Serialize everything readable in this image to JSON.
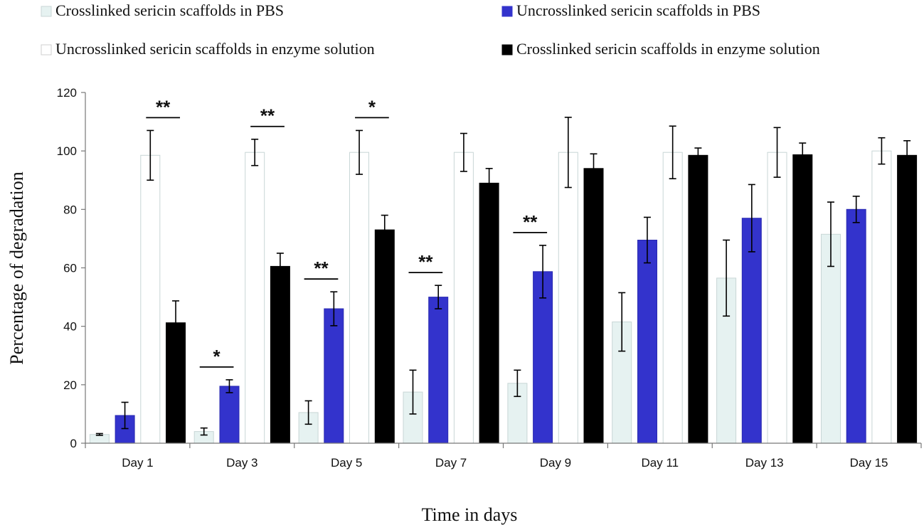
{
  "chart_data": {
    "type": "bar",
    "xlabel": "Time in days",
    "ylabel": "Percentage  of degradation",
    "ylim": [
      0,
      120
    ],
    "yticks": [
      0,
      20,
      40,
      60,
      80,
      100,
      120
    ],
    "categories": [
      "Day 1",
      "Day 3",
      "Day 5",
      "Day 7",
      "Day 9",
      "Day 11",
      "Day 13",
      "Day 15"
    ],
    "legend_position": "top",
    "grid": false,
    "series": [
      {
        "name": "Crosslinked sericin scaffolds in PBS",
        "color": "#e6f2f1",
        "values": [
          3,
          4,
          10.5,
          17.5,
          20.5,
          41.5,
          56.5,
          71.5
        ],
        "errors": [
          0.3,
          1.2,
          4,
          7.5,
          4.5,
          10,
          13,
          11
        ]
      },
      {
        "name": "Uncrosslinked sericin scaffolds in PBS",
        "color": "#3333cc",
        "values": [
          9.5,
          19.5,
          46,
          50,
          58.7,
          69.5,
          77,
          80
        ],
        "errors": [
          4.5,
          2.2,
          5.8,
          4,
          9,
          7.8,
          11.5,
          4.5
        ]
      },
      {
        "name": "Uncrosslinked sericin scaffolds in enzyme solution",
        "color": "#ffffff",
        "values": [
          98.5,
          99.5,
          99.5,
          99.5,
          99.5,
          99.5,
          99.5,
          100
        ],
        "errors": [
          8.5,
          4.5,
          7.5,
          6.5,
          12,
          9,
          8.5,
          4.5
        ]
      },
      {
        "name": "Crosslinked sericin scaffolds in enzyme solution",
        "color": "#000000",
        "values": [
          41.2,
          60.5,
          73,
          89,
          94,
          98.5,
          98.7,
          98.5
        ],
        "errors": [
          7.5,
          4.5,
          5,
          5,
          5,
          2.5,
          4,
          5
        ]
      }
    ],
    "annotations": [
      {
        "text": "**",
        "category_index": 0,
        "from_series": 2,
        "to_series": 3
      },
      {
        "text": "**",
        "category_index": 1,
        "from_series": 2,
        "to_series": 3
      },
      {
        "text": "*",
        "category_index": 1,
        "from_series": 0,
        "to_series": 1
      },
      {
        "text": "*",
        "category_index": 2,
        "from_series": 2,
        "to_series": 3
      },
      {
        "text": "**",
        "category_index": 2,
        "from_series": 0,
        "to_series": 1
      },
      {
        "text": "**",
        "category_index": 3,
        "from_series": 0,
        "to_series": 1
      },
      {
        "text": "**",
        "category_index": 4,
        "from_series": 0,
        "to_series": 1
      }
    ]
  }
}
